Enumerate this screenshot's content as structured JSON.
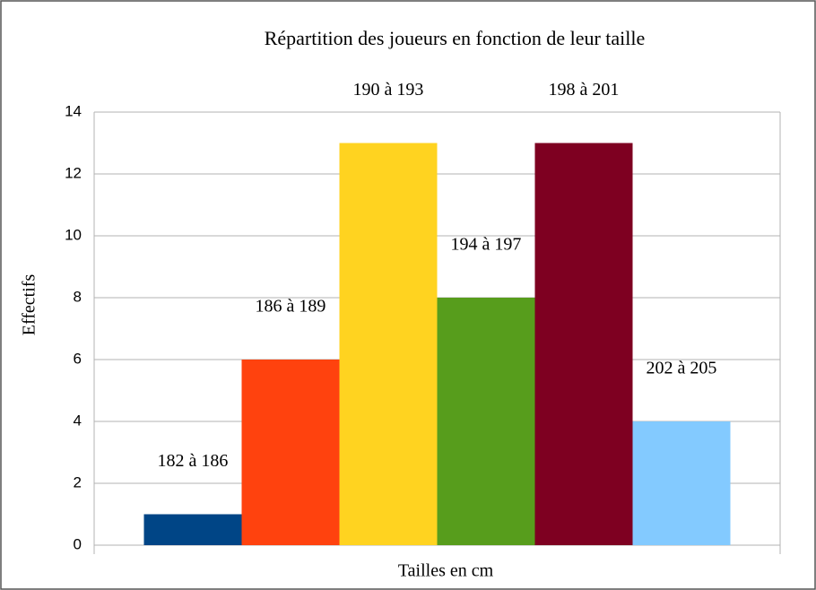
{
  "chart_data": {
    "type": "bar",
    "title": "Répartition des joueurs en fonction de leur taille",
    "x_label": "Tailles en cm",
    "y_label": "Effectifs",
    "categories": [
      "182 à 186",
      "186 à 189",
      "190 à 193",
      "194 à 197",
      "198 à 201",
      "202 à 205"
    ],
    "values": [
      1,
      6,
      13,
      8,
      13,
      4
    ],
    "colors": [
      "#004586",
      "#ff420e",
      "#ffd320",
      "#579d1c",
      "#7e0021",
      "#83caff"
    ],
    "ylim": [
      0,
      14
    ],
    "yticks": [
      0,
      2,
      4,
      6,
      8,
      10,
      12,
      14
    ],
    "grid": true
  }
}
